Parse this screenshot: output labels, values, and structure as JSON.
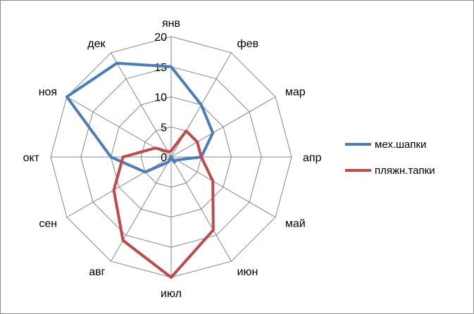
{
  "chart_data": {
    "type": "radar",
    "categories": [
      "янв",
      "фев",
      "мар",
      "апр",
      "май",
      "июн",
      "июл",
      "авг",
      "сен",
      "окт",
      "ноя",
      "дек"
    ],
    "ticks": [
      "0",
      "5",
      "10",
      "15",
      "20"
    ],
    "rlim": [
      0,
      20
    ],
    "grid": true,
    "legend_position": "right",
    "series": [
      {
        "name": "мех.шапки",
        "color": "#4a7ebb",
        "values": [
          15,
          10,
          8,
          5,
          1,
          1,
          0,
          1,
          5,
          10,
          20,
          18
        ]
      },
      {
        "name": "пляжн.тапки",
        "color": "#be4b48",
        "values": [
          1,
          5,
          5,
          5,
          8,
          14,
          20,
          16,
          11,
          8,
          3,
          1
        ]
      }
    ]
  }
}
